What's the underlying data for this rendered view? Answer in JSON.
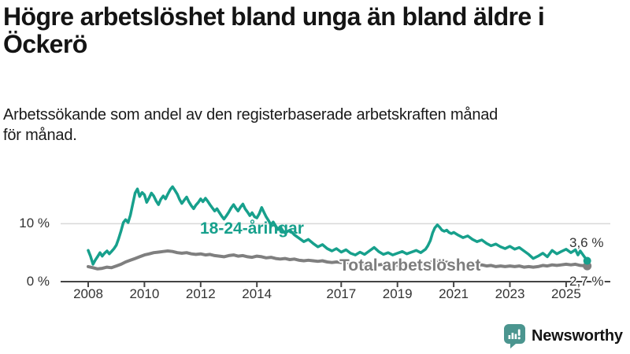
{
  "header": {
    "title_line1": "Högre arbetslöshet bland unga än bland äldre i",
    "title_line2": "Öckerö",
    "subtitle_line1": "Arbetssökande som andel av den registerbaserade arbetskraften månad",
    "subtitle_line2": "för månad."
  },
  "footer": {
    "brand": "Newsworthy",
    "logo_icon": "bar-chart-speech-bubble-icon"
  },
  "colors": {
    "youth_line": "#17a08c",
    "total_line": "#7f7f7f",
    "grid": "#d8d8d8",
    "axis": "#444444",
    "tick_text": "#333333",
    "title_text": "#141414",
    "logo_teal": "#4b958f",
    "wordmark": "#4a8e94"
  },
  "chart_data": {
    "type": "line",
    "title": "Högre arbetslöshet bland unga än bland äldre i Öckerö",
    "subtitle": "Arbetssökande som andel av den registerbaserade arbetskraften månad för månad.",
    "unit": "%",
    "xlim": [
      2007.9,
      2026.3
    ],
    "ylim": [
      0,
      17
    ],
    "grid": "horizontal line at 10% only",
    "legend_position": "inline-labels-on-chart",
    "y_ticks": [
      {
        "value": 0,
        "label": "0 %"
      },
      {
        "value": 10,
        "label": "10 %"
      }
    ],
    "x_ticks": [
      {
        "value": 2008,
        "label": "2008"
      },
      {
        "value": 2010,
        "label": "2010"
      },
      {
        "value": 2012,
        "label": "2012"
      },
      {
        "value": 2014,
        "label": "2014"
      },
      {
        "value": 2017,
        "label": "2017"
      },
      {
        "value": 2019,
        "label": "2019"
      },
      {
        "value": 2021,
        "label": "2021"
      },
      {
        "value": 2023,
        "label": "2023"
      },
      {
        "value": 2025,
        "label": "2025"
      }
    ],
    "series": [
      {
        "name": "18-24-åringar",
        "color": "#17a08c",
        "end_value": 3.6,
        "end_label": "3,6 %",
        "points": [
          [
            2008.0,
            5.4
          ],
          [
            2008.08,
            4.4
          ],
          [
            2008.17,
            3.0
          ],
          [
            2008.25,
            3.7
          ],
          [
            2008.33,
            4.3
          ],
          [
            2008.42,
            5.0
          ],
          [
            2008.5,
            4.4
          ],
          [
            2008.58,
            4.9
          ],
          [
            2008.67,
            5.3
          ],
          [
            2008.75,
            4.8
          ],
          [
            2008.83,
            5.2
          ],
          [
            2008.92,
            5.7
          ],
          [
            2009.0,
            6.3
          ],
          [
            2009.08,
            7.4
          ],
          [
            2009.17,
            8.8
          ],
          [
            2009.25,
            10.2
          ],
          [
            2009.33,
            10.7
          ],
          [
            2009.42,
            10.2
          ],
          [
            2009.5,
            11.5
          ],
          [
            2009.58,
            13.3
          ],
          [
            2009.67,
            15.3
          ],
          [
            2009.75,
            16.0
          ],
          [
            2009.83,
            14.7
          ],
          [
            2009.92,
            15.4
          ],
          [
            2010.0,
            15.0
          ],
          [
            2010.08,
            13.7
          ],
          [
            2010.17,
            14.5
          ],
          [
            2010.25,
            15.3
          ],
          [
            2010.33,
            14.8
          ],
          [
            2010.42,
            13.9
          ],
          [
            2010.5,
            13.3
          ],
          [
            2010.58,
            14.2
          ],
          [
            2010.67,
            14.8
          ],
          [
            2010.75,
            14.3
          ],
          [
            2010.83,
            15.1
          ],
          [
            2010.92,
            15.9
          ],
          [
            2011.0,
            16.4
          ],
          [
            2011.08,
            15.8
          ],
          [
            2011.17,
            15.1
          ],
          [
            2011.25,
            14.2
          ],
          [
            2011.33,
            13.5
          ],
          [
            2011.42,
            14.1
          ],
          [
            2011.5,
            14.6
          ],
          [
            2011.58,
            13.8
          ],
          [
            2011.67,
            13.1
          ],
          [
            2011.75,
            12.6
          ],
          [
            2011.83,
            13.2
          ],
          [
            2011.92,
            13.7
          ],
          [
            2012.0,
            14.3
          ],
          [
            2012.08,
            13.8
          ],
          [
            2012.17,
            14.4
          ],
          [
            2012.25,
            13.9
          ],
          [
            2012.33,
            13.3
          ],
          [
            2012.42,
            12.7
          ],
          [
            2012.5,
            12.2
          ],
          [
            2012.58,
            12.6
          ],
          [
            2012.67,
            11.9
          ],
          [
            2012.75,
            11.3
          ],
          [
            2012.83,
            10.8
          ],
          [
            2012.92,
            11.4
          ],
          [
            2013.0,
            12.0
          ],
          [
            2013.08,
            12.7
          ],
          [
            2013.17,
            13.3
          ],
          [
            2013.25,
            12.7
          ],
          [
            2013.33,
            12.2
          ],
          [
            2013.42,
            12.9
          ],
          [
            2013.5,
            13.4
          ],
          [
            2013.58,
            12.6
          ],
          [
            2013.67,
            12.0
          ],
          [
            2013.75,
            11.4
          ],
          [
            2013.83,
            11.9
          ],
          [
            2013.92,
            11.2
          ],
          [
            2014.0,
            11.0
          ],
          [
            2014.08,
            11.7
          ],
          [
            2014.17,
            12.8
          ],
          [
            2014.25,
            12.0
          ],
          [
            2014.33,
            11.2
          ],
          [
            2014.42,
            10.5
          ],
          [
            2014.5,
            9.8
          ],
          [
            2014.58,
            10.3
          ],
          [
            2014.67,
            9.6
          ],
          [
            2014.75,
            9.0
          ],
          [
            2014.83,
            9.5
          ],
          [
            2014.92,
            8.8
          ],
          [
            2015.0,
            8.4
          ],
          [
            2015.17,
            8.9
          ],
          [
            2015.33,
            8.1
          ],
          [
            2015.5,
            7.5
          ],
          [
            2015.67,
            6.9
          ],
          [
            2015.83,
            7.3
          ],
          [
            2016.0,
            6.6
          ],
          [
            2016.17,
            6.0
          ],
          [
            2016.33,
            6.4
          ],
          [
            2016.5,
            5.7
          ],
          [
            2016.67,
            5.3
          ],
          [
            2016.83,
            5.7
          ],
          [
            2017.0,
            5.1
          ],
          [
            2017.17,
            5.5
          ],
          [
            2017.33,
            4.9
          ],
          [
            2017.5,
            4.6
          ],
          [
            2017.67,
            5.1
          ],
          [
            2017.83,
            4.7
          ],
          [
            2018.0,
            5.3
          ],
          [
            2018.17,
            5.9
          ],
          [
            2018.33,
            5.2
          ],
          [
            2018.5,
            4.7
          ],
          [
            2018.67,
            5.0
          ],
          [
            2018.83,
            4.6
          ],
          [
            2019.0,
            4.9
          ],
          [
            2019.17,
            5.2
          ],
          [
            2019.33,
            4.8
          ],
          [
            2019.5,
            5.1
          ],
          [
            2019.67,
            5.4
          ],
          [
            2019.83,
            5.0
          ],
          [
            2020.0,
            5.6
          ],
          [
            2020.08,
            6.2
          ],
          [
            2020.17,
            7.1
          ],
          [
            2020.25,
            8.4
          ],
          [
            2020.33,
            9.3
          ],
          [
            2020.42,
            9.8
          ],
          [
            2020.5,
            9.4
          ],
          [
            2020.58,
            8.9
          ],
          [
            2020.67,
            8.7
          ],
          [
            2020.75,
            8.9
          ],
          [
            2020.83,
            8.5
          ],
          [
            2020.92,
            8.3
          ],
          [
            2021.0,
            8.5
          ],
          [
            2021.17,
            8.0
          ],
          [
            2021.33,
            7.6
          ],
          [
            2021.5,
            7.9
          ],
          [
            2021.67,
            7.3
          ],
          [
            2021.83,
            6.9
          ],
          [
            2022.0,
            7.2
          ],
          [
            2022.17,
            6.6
          ],
          [
            2022.33,
            6.2
          ],
          [
            2022.5,
            6.5
          ],
          [
            2022.67,
            6.0
          ],
          [
            2022.83,
            5.7
          ],
          [
            2023.0,
            6.1
          ],
          [
            2023.17,
            5.6
          ],
          [
            2023.33,
            5.9
          ],
          [
            2023.5,
            5.3
          ],
          [
            2023.67,
            4.7
          ],
          [
            2023.83,
            4.0
          ],
          [
            2024.0,
            4.4
          ],
          [
            2024.17,
            4.9
          ],
          [
            2024.33,
            4.3
          ],
          [
            2024.5,
            5.4
          ],
          [
            2024.67,
            4.8
          ],
          [
            2024.83,
            5.2
          ],
          [
            2025.0,
            5.6
          ],
          [
            2025.17,
            5.0
          ],
          [
            2025.33,
            5.5
          ],
          [
            2025.42,
            4.6
          ],
          [
            2025.5,
            5.3
          ],
          [
            2025.75,
            3.6
          ]
        ]
      },
      {
        "name": "Total arbetslöshet",
        "color": "#7f7f7f",
        "end_value": 2.7,
        "end_label": "2,7 %",
        "points": [
          [
            2008.0,
            2.6
          ],
          [
            2008.17,
            2.4
          ],
          [
            2008.33,
            2.2
          ],
          [
            2008.5,
            2.3
          ],
          [
            2008.67,
            2.5
          ],
          [
            2008.83,
            2.4
          ],
          [
            2009.0,
            2.7
          ],
          [
            2009.17,
            3.0
          ],
          [
            2009.33,
            3.4
          ],
          [
            2009.5,
            3.7
          ],
          [
            2009.67,
            4.0
          ],
          [
            2009.83,
            4.3
          ],
          [
            2010.0,
            4.6
          ],
          [
            2010.17,
            4.8
          ],
          [
            2010.33,
            5.0
          ],
          [
            2010.5,
            5.1
          ],
          [
            2010.67,
            5.2
          ],
          [
            2010.83,
            5.3
          ],
          [
            2011.0,
            5.2
          ],
          [
            2011.17,
            5.0
          ],
          [
            2011.33,
            4.9
          ],
          [
            2011.5,
            5.0
          ],
          [
            2011.67,
            4.8
          ],
          [
            2011.83,
            4.7
          ],
          [
            2012.0,
            4.8
          ],
          [
            2012.17,
            4.6
          ],
          [
            2012.33,
            4.7
          ],
          [
            2012.5,
            4.5
          ],
          [
            2012.67,
            4.4
          ],
          [
            2012.83,
            4.3
          ],
          [
            2013.0,
            4.5
          ],
          [
            2013.17,
            4.6
          ],
          [
            2013.33,
            4.4
          ],
          [
            2013.5,
            4.5
          ],
          [
            2013.67,
            4.3
          ],
          [
            2013.83,
            4.2
          ],
          [
            2014.0,
            4.4
          ],
          [
            2014.17,
            4.3
          ],
          [
            2014.33,
            4.1
          ],
          [
            2014.5,
            4.2
          ],
          [
            2014.67,
            4.0
          ],
          [
            2014.83,
            3.9
          ],
          [
            2015.0,
            4.0
          ],
          [
            2015.17,
            3.8
          ],
          [
            2015.33,
            3.9
          ],
          [
            2015.5,
            3.7
          ],
          [
            2015.67,
            3.6
          ],
          [
            2015.83,
            3.7
          ],
          [
            2016.0,
            3.6
          ],
          [
            2016.17,
            3.5
          ],
          [
            2016.33,
            3.6
          ],
          [
            2016.5,
            3.4
          ],
          [
            2016.67,
            3.3
          ],
          [
            2016.83,
            3.4
          ],
          [
            2017.0,
            3.3
          ],
          [
            2017.17,
            3.2
          ],
          [
            2017.33,
            3.3
          ],
          [
            2017.5,
            3.1
          ],
          [
            2017.67,
            3.2
          ],
          [
            2017.83,
            3.0
          ],
          [
            2018.0,
            3.1
          ],
          [
            2018.17,
            3.0
          ],
          [
            2018.33,
            2.9
          ],
          [
            2018.5,
            3.0
          ],
          [
            2018.67,
            2.8
          ],
          [
            2018.83,
            2.9
          ],
          [
            2019.0,
            2.8
          ],
          [
            2019.17,
            2.9
          ],
          [
            2019.33,
            2.8
          ],
          [
            2019.5,
            2.9
          ],
          [
            2019.67,
            3.0
          ],
          [
            2019.83,
            2.9
          ],
          [
            2020.0,
            3.0
          ],
          [
            2020.17,
            3.3
          ],
          [
            2020.33,
            3.6
          ],
          [
            2020.5,
            3.5
          ],
          [
            2020.67,
            3.4
          ],
          [
            2020.83,
            3.3
          ],
          [
            2021.0,
            3.2
          ],
          [
            2021.17,
            3.1
          ],
          [
            2021.33,
            3.0
          ],
          [
            2021.5,
            2.9
          ],
          [
            2021.67,
            2.8
          ],
          [
            2021.83,
            2.8
          ],
          [
            2022.0,
            2.9
          ],
          [
            2022.17,
            2.7
          ],
          [
            2022.33,
            2.8
          ],
          [
            2022.5,
            2.6
          ],
          [
            2022.67,
            2.7
          ],
          [
            2022.83,
            2.6
          ],
          [
            2023.0,
            2.7
          ],
          [
            2023.17,
            2.6
          ],
          [
            2023.33,
            2.7
          ],
          [
            2023.5,
            2.5
          ],
          [
            2023.67,
            2.6
          ],
          [
            2023.83,
            2.5
          ],
          [
            2024.0,
            2.6
          ],
          [
            2024.17,
            2.8
          ],
          [
            2024.33,
            2.7
          ],
          [
            2024.5,
            2.9
          ],
          [
            2024.67,
            2.8
          ],
          [
            2024.83,
            2.9
          ],
          [
            2025.0,
            3.0
          ],
          [
            2025.17,
            2.9
          ],
          [
            2025.33,
            3.0
          ],
          [
            2025.5,
            2.8
          ],
          [
            2025.75,
            2.7
          ]
        ]
      }
    ]
  }
}
